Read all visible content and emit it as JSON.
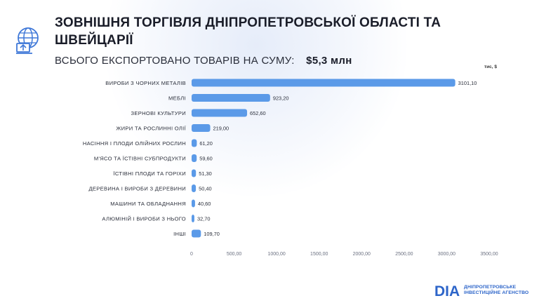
{
  "header": {
    "title": "ЗОВНІШНЯ ТОРГІВЛЯ ДНІПРОПЕТРОВСЬКОЇ ОБЛАСТІ ТА ШВЕЙЦАРІЇ",
    "subtitle": "ВСЬОГО ЕКСПОРТОВАНО ТОВАРІВ НА СУМУ:",
    "total": "$5,3 млн",
    "icon": "globe-export-icon"
  },
  "chart_data": {
    "type": "bar",
    "orientation": "horizontal",
    "unit": "тис, $",
    "categories": [
      "ВИРОБИ З ЧОРНИХ МЕТАЛІВ",
      "МЕБЛІ",
      "ЗЕРНОВІ КУЛЬТУРИ",
      "ЖИРИ ТА РОСЛИННІ ОЛІЇ",
      "НАСІННЯ І ПЛОДИ ОЛІЙНИХ РОСЛИН",
      "М'ЯСО ТА ЇСТІВНІ СУБПРОДУКТИ",
      "ЇСТІВНІ ПЛОДИ ТА ГОРІХИ",
      "ДЕРЕВИНА І ВИРОБИ З ДЕРЕВИНИ",
      "МАШИНИ ТА ОБЛАДНАННЯ",
      "АЛЮМІНІЙ І ВИРОБИ З НЬОГО",
      "ІНШІ"
    ],
    "values": [
      3101.1,
      923.2,
      652.6,
      219.0,
      61.2,
      59.6,
      51.3,
      50.4,
      40.6,
      32.7,
      109.7
    ],
    "value_labels": [
      "3101,10",
      "923,20",
      "652,60",
      "219,00",
      "61,20",
      "59,60",
      "51,30",
      "50,40",
      "40,60",
      "32,70",
      "109,70"
    ],
    "xlim": [
      0,
      3500
    ],
    "x_ticks": [
      0,
      500,
      1000,
      1500,
      2000,
      2500,
      3000,
      3500
    ],
    "x_tick_labels": [
      "0",
      "500,00",
      "1000,00",
      "1500,00",
      "2000,00",
      "2500,00",
      "3000,00",
      "3500,00"
    ],
    "bar_color": "#5b9ae8",
    "grid": false,
    "legend": "none"
  },
  "footer": {
    "brand_mark": "DIA",
    "brand_line1": "ДНІПРОПЕТРОВСЬКЕ",
    "brand_line2": "ІНВЕСТИЦІЙНЕ АГЕНСТВО",
    "brand_color": "#2d65c9"
  }
}
